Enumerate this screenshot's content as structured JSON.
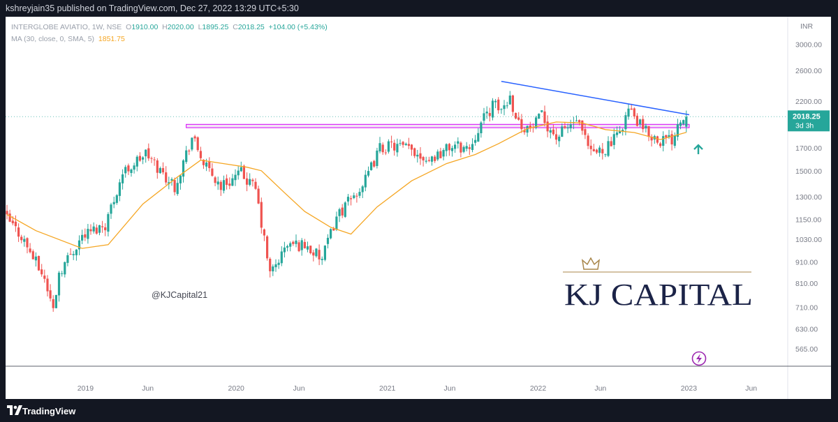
{
  "header": {
    "published_text": "kshreyjain35 published on TradingView.com, Dec 27, 2022 13:29 UTC+5:30"
  },
  "legend": {
    "symbol": "INTERGLOBE AVIATIO, 1W, NSE",
    "open_label": "O",
    "open": "1910.00",
    "high_label": "H",
    "high": "2020.00",
    "low_label": "L",
    "low": "1895.25",
    "close_label": "C",
    "close": "2018.25",
    "change": "+104.00 (+5.43%)",
    "ma_label": "MA (30, close, 0, SMA, 5)",
    "ma_value": "1851.75"
  },
  "price_axis": {
    "currency": "INR",
    "ticks": [
      "3000.00",
      "2600.00",
      "2200.00",
      "1700.00",
      "1500.00",
      "1300.00",
      "1150.00",
      "1030.00",
      "910.00",
      "810.00",
      "710.00",
      "630.00",
      "565.00"
    ],
    "last_price": "2018.25",
    "countdown": "3d 3h"
  },
  "time_axis": {
    "ticks": [
      "2019",
      "Jun",
      "2020",
      "Jun",
      "2021",
      "Jun",
      "2022",
      "Jun",
      "2023",
      "Jun"
    ]
  },
  "annotations": {
    "handle": "@KJCapital21",
    "watermark": "KJ CAPITAL"
  },
  "colors": {
    "up": "#26a69a",
    "down": "#ef5350",
    "ma": "#f5a623",
    "trendline": "#2962ff",
    "support_zone": "#d500f9",
    "arrow": "#26a69a",
    "last_price_bg": "#26a69a"
  },
  "footer": {
    "brand": "TradingView"
  },
  "chart_data": {
    "type": "candlestick",
    "symbol": "INTERGLOBE AVIATIO",
    "interval": "1W",
    "exchange": "NSE",
    "scale": "log",
    "yrange": [
      565,
      3400
    ],
    "grid": false,
    "series": [
      {
        "name": "INTERGLOBE AVIATIO",
        "type": "candlestick",
        "close_path": [
          [
            "2018-06-25",
            1150
          ],
          [
            "2018-07-30",
            1050
          ],
          [
            "2018-09-24",
            830
          ],
          [
            "2018-10-15",
            700
          ],
          [
            "2018-10-29",
            860
          ],
          [
            "2018-12-24",
            1050
          ],
          [
            "2019-02-18",
            1120
          ],
          [
            "2019-04-01",
            1480
          ],
          [
            "2019-05-27",
            1650
          ],
          [
            "2019-07-01",
            1500
          ],
          [
            "2019-08-05",
            1380
          ],
          [
            "2019-09-16",
            1800
          ],
          [
            "2019-10-21",
            1520
          ],
          [
            "2019-11-25",
            1380
          ],
          [
            "2020-01-13",
            1480
          ],
          [
            "2020-02-17",
            1350
          ],
          [
            "2020-03-23",
            850
          ],
          [
            "2020-05-04",
            1000
          ],
          [
            "2020-06-15",
            1000
          ],
          [
            "2020-07-27",
            920
          ],
          [
            "2020-08-31",
            1170
          ],
          [
            "2020-10-05",
            1280
          ],
          [
            "2020-11-09",
            1420
          ],
          [
            "2020-12-14",
            1700
          ],
          [
            "2021-01-18",
            1720
          ],
          [
            "2021-03-01",
            1680
          ],
          [
            "2021-04-12",
            1600
          ],
          [
            "2021-06-07",
            1720
          ],
          [
            "2021-07-19",
            1700
          ],
          [
            "2021-08-09",
            1900
          ],
          [
            "2021-09-13",
            2150
          ],
          [
            "2021-10-04",
            2100
          ],
          [
            "2021-10-25",
            2250
          ],
          [
            "2021-11-15",
            1950
          ],
          [
            "2021-12-13",
            1880
          ],
          [
            "2022-01-10",
            2020
          ],
          [
            "2022-02-14",
            1800
          ],
          [
            "2022-03-07",
            1880
          ],
          [
            "2022-04-04",
            1980
          ],
          [
            "2022-05-09",
            1640
          ],
          [
            "2022-06-13",
            1700
          ],
          [
            "2022-07-11",
            1800
          ],
          [
            "2022-08-08",
            2100
          ],
          [
            "2022-09-12",
            1880
          ],
          [
            "2022-10-17",
            1780
          ],
          [
            "2022-11-21",
            1780
          ],
          [
            "2022-12-05",
            1960
          ],
          [
            "2022-12-26",
            2018.25
          ]
        ]
      },
      {
        "name": "MA (30, close, 0, SMA, 5)",
        "type": "line",
        "points": [
          [
            "2018-06-25",
            1180
          ],
          [
            "2018-09-03",
            1080
          ],
          [
            "2018-12-24",
            980
          ],
          [
            "2019-02-25",
            1000
          ],
          [
            "2019-05-20",
            1250
          ],
          [
            "2019-08-12",
            1450
          ],
          [
            "2019-10-07",
            1590
          ],
          [
            "2019-12-02",
            1560
          ],
          [
            "2020-01-27",
            1530
          ],
          [
            "2020-03-02",
            1500
          ],
          [
            "2020-04-27",
            1330
          ],
          [
            "2020-06-15",
            1200
          ],
          [
            "2020-08-17",
            1100
          ],
          [
            "2020-10-05",
            1060
          ],
          [
            "2020-12-07",
            1230
          ],
          [
            "2021-03-01",
            1420
          ],
          [
            "2021-05-24",
            1560
          ],
          [
            "2021-08-02",
            1640
          ],
          [
            "2021-09-27",
            1740
          ],
          [
            "2021-12-06",
            1890
          ],
          [
            "2022-02-14",
            1960
          ],
          [
            "2022-04-18",
            1950
          ],
          [
            "2022-06-13",
            1880
          ],
          [
            "2022-08-22",
            1850
          ],
          [
            "2022-10-24",
            1780
          ],
          [
            "2022-12-26",
            1851.75
          ]
        ]
      }
    ],
    "trendlines": [
      {
        "type": "resistance",
        "from": [
          "2021-10-04",
          2450
        ],
        "to": [
          "2023-01-02",
          2040
        ]
      },
      {
        "type": "support_zone",
        "from": "2019-09-02",
        "to": "2023-01-02",
        "range": [
          1900,
          1935
        ]
      }
    ],
    "last": {
      "open": 1910.0,
      "high": 2020.0,
      "low": 1895.25,
      "close": 2018.25,
      "change": 104.0,
      "change_pct": 5.43
    }
  }
}
